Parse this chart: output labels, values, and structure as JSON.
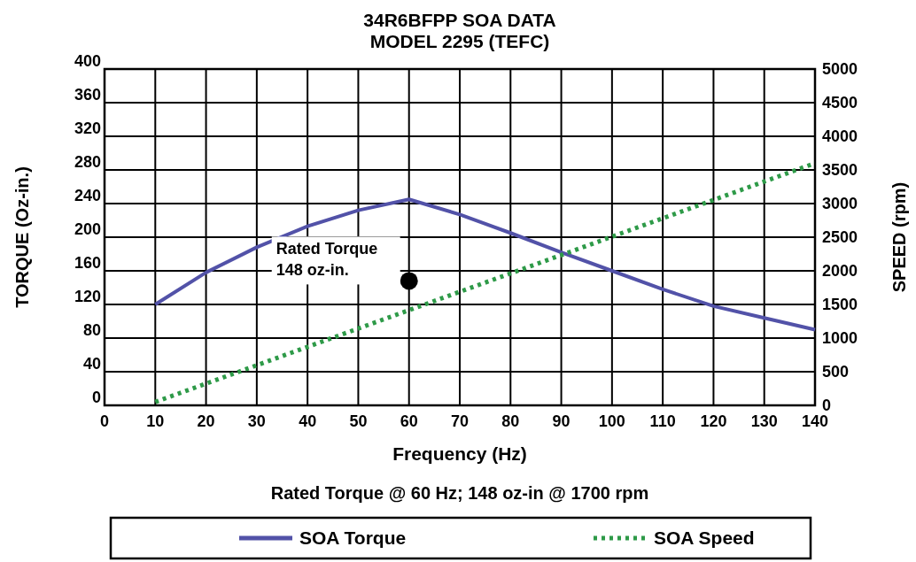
{
  "chart_data": {
    "type": "line",
    "title": "34R6BFPP SOA DATA\nMODEL 2295 (TEFC)",
    "xlabel": "Frequency (Hz)",
    "ylabel": "TORQUE (Oz-in.)",
    "y2label": "SPEED (rpm)",
    "xlim": [
      0,
      140
    ],
    "xticks": [
      0,
      10,
      20,
      30,
      40,
      50,
      60,
      70,
      80,
      90,
      100,
      110,
      120,
      130,
      140
    ],
    "ylim": [
      0,
      400
    ],
    "yticks": [
      0,
      40,
      80,
      120,
      160,
      200,
      240,
      280,
      320,
      360,
      400
    ],
    "y2lim": [
      0,
      5000
    ],
    "y2ticks": [
      0,
      500,
      1000,
      1500,
      2000,
      2500,
      3000,
      3500,
      4000,
      4500,
      5000
    ],
    "grid": true,
    "legend": "bottom",
    "series": [
      {
        "name": "SOA Torque",
        "color": "#5252a8",
        "line_style": "solid",
        "x": [
          10,
          20,
          30,
          40,
          50,
          60,
          70,
          80,
          90,
          100,
          110,
          120,
          130,
          140
        ],
        "values": [
          120,
          158,
          188,
          213,
          232,
          245,
          227,
          205,
          182,
          160,
          138,
          118,
          104,
          90
        ]
      },
      {
        "name": "SOA Speed",
        "color": "#2e9a48",
        "line_style": "dotted",
        "axis": "y2",
        "x": [
          10,
          140
        ],
        "values": [
          50,
          3600
        ]
      },
      {
        "type": "scatter",
        "color": "#000000",
        "marker": "circle",
        "x": [
          60
        ],
        "values": [
          148
        ]
      }
    ],
    "annotations": [
      {
        "text": "Rated Torque\n148 oz-in.",
        "x": 60,
        "y": 148
      },
      "Rated Torque @ 60 Hz; 148 oz-in @ 1700 rpm"
    ]
  }
}
